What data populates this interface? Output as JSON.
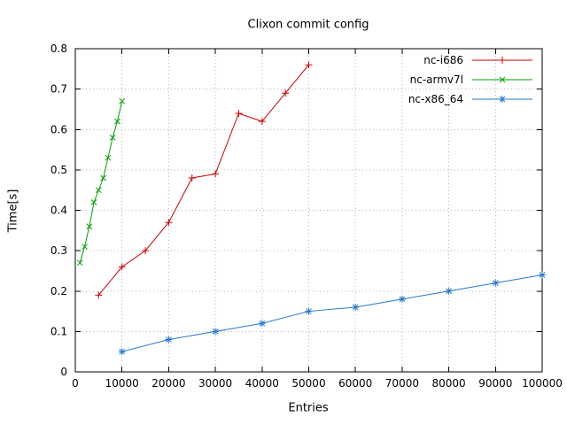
{
  "chart_data": {
    "type": "line",
    "title": "Clixon commit config",
    "xlabel": "Entries",
    "ylabel": "Time[s]",
    "xlim": [
      0,
      100000
    ],
    "ylim": [
      0,
      0.8
    ],
    "x_ticks": [
      0,
      10000,
      20000,
      30000,
      40000,
      50000,
      60000,
      70000,
      80000,
      90000,
      100000
    ],
    "y_ticks": [
      0,
      0.1,
      0.2,
      0.3,
      0.4,
      0.5,
      0.6,
      0.7,
      0.8
    ],
    "grid": true,
    "legend_position": "top-right-inside",
    "colors": {
      "axis": "#000000",
      "grid": "#b8b8b8",
      "series1": "#d00000",
      "series2": "#00a000",
      "series3": "#2878c8"
    },
    "series": [
      {
        "name": "nc-i686",
        "color": "#d00000",
        "marker": "plus",
        "x": [
          5000,
          10000,
          15000,
          20000,
          25000,
          30000,
          35000,
          40000,
          45000,
          50000
        ],
        "y": [
          0.19,
          0.26,
          0.3,
          0.37,
          0.48,
          0.49,
          0.64,
          0.62,
          0.69,
          0.76
        ]
      },
      {
        "name": "nc-armv7l",
        "color": "#00a000",
        "marker": "cross",
        "x": [
          1000,
          2000,
          3000,
          4000,
          5000,
          6000,
          7000,
          8000,
          9000,
          10000
        ],
        "y": [
          0.27,
          0.31,
          0.36,
          0.42,
          0.45,
          0.48,
          0.53,
          0.58,
          0.62,
          0.67
        ]
      },
      {
        "name": "nc-x86_64",
        "color": "#2878c8",
        "marker": "star",
        "x": [
          10000,
          20000,
          30000,
          40000,
          50000,
          60000,
          70000,
          80000,
          90000,
          100000
        ],
        "y": [
          0.05,
          0.08,
          0.1,
          0.12,
          0.15,
          0.16,
          0.18,
          0.2,
          0.22,
          0.24
        ]
      }
    ]
  }
}
